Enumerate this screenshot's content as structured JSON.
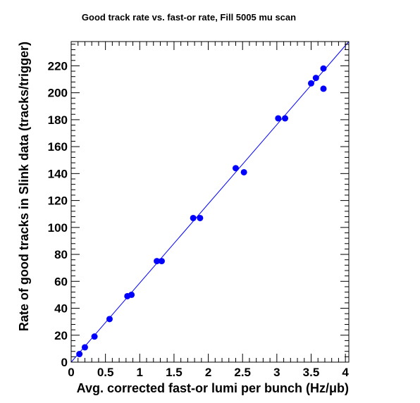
{
  "chart_data": {
    "type": "scatter",
    "title": "Good track rate vs. fast-or rate, Fill 5005 mu scan",
    "xlabel": "Avg. corrected fast-or lumi per bunch (Hz/μb)",
    "ylabel": "Rate of good tracks in Slink data (tracks/trigger)",
    "xlim": [
      0,
      4.05
    ],
    "ylim": [
      0,
      238
    ],
    "x_ticks": [
      "0",
      "0.5",
      "1",
      "1.5",
      "2",
      "2.5",
      "3",
      "3.5",
      "4"
    ],
    "y_ticks": [
      "0",
      "20",
      "40",
      "60",
      "80",
      "100",
      "120",
      "140",
      "160",
      "180",
      "200",
      "220"
    ],
    "grid": false,
    "legend": "none",
    "colors": {
      "points": "#0000ff",
      "fit_line": "#0000ff",
      "frame": "#000000"
    },
    "series": [
      {
        "x": [
          0.12,
          0.2,
          0.34,
          0.56,
          0.82,
          0.88,
          1.25,
          1.32,
          1.78,
          1.88,
          2.4,
          2.52,
          3.02,
          3.12,
          3.5,
          3.57,
          3.68,
          3.68
        ],
        "y": [
          6,
          11,
          19,
          32,
          49,
          50,
          75,
          75,
          107,
          107,
          144,
          141,
          181,
          181,
          207,
          211,
          218,
          203
        ]
      }
    ],
    "fit_line": {
      "x": [
        0,
        4.05
      ],
      "y": [
        0,
        238
      ]
    }
  }
}
